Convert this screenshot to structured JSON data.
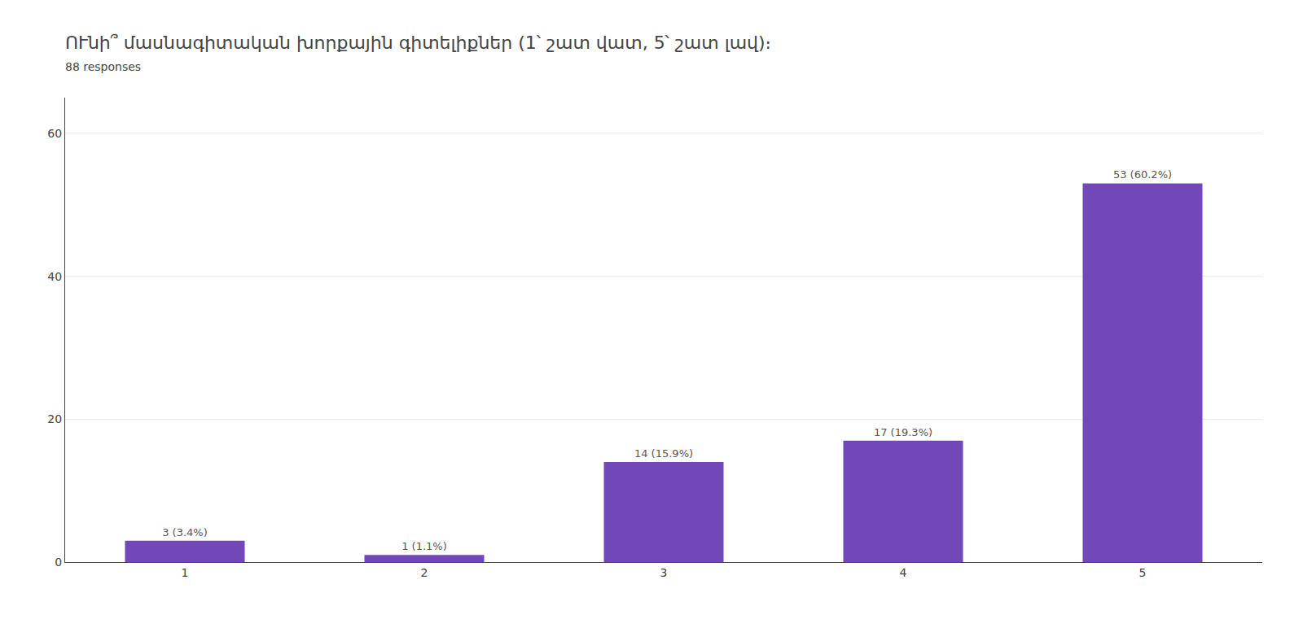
{
  "chart_data": {
    "type": "bar",
    "title": "ՈՒնի՞ մասնագիտական խորքային գիտելիքներ (1՝ շատ վատ, 5՝ շատ լավ)։   ",
    "subtitle": "88 responses",
    "categories": [
      "1",
      "2",
      "3",
      "4",
      "5"
    ],
    "values": [
      3,
      1,
      14,
      17,
      53
    ],
    "value_labels": [
      "3 (3.4%)",
      "1 (1.1%)",
      "14 (15.9%)",
      "17 (19.3%)",
      "53 (60.2%)"
    ],
    "color": "#7248b9",
    "ylim": [
      0,
      65
    ],
    "yticks": [
      0,
      20,
      40,
      60
    ],
    "grid": true,
    "data_labels": true
  }
}
